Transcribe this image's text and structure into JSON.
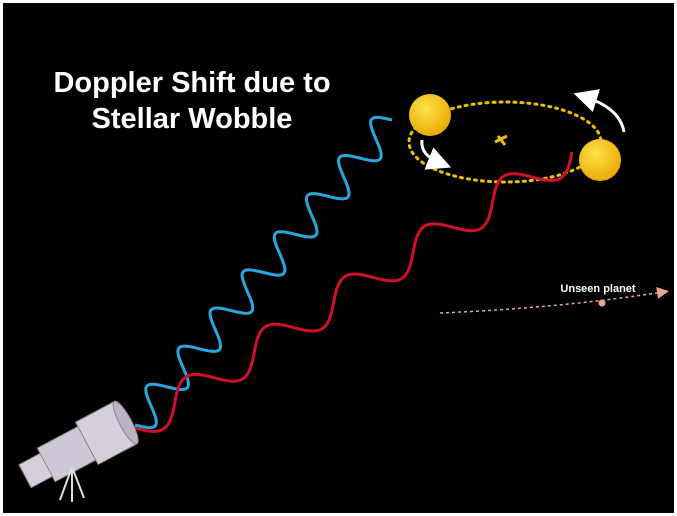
{
  "title": {
    "lines": [
      "Doppler Shift due to",
      "Stellar Wobble"
    ]
  },
  "labels": {
    "planet": "Unseen planet"
  }
}
